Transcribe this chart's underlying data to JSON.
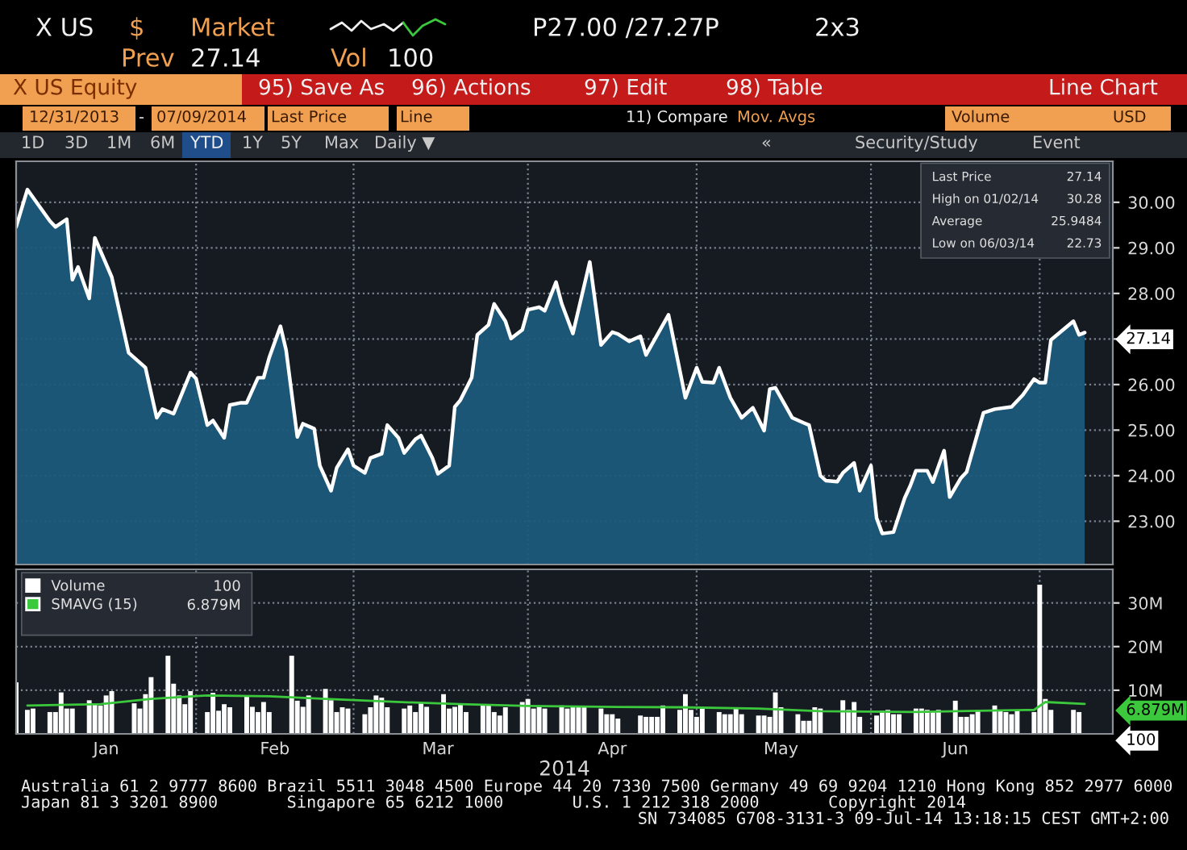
{
  "chart_data": [
    {
      "type": "other",
      "annotations": [
        "X US",
        "$",
        "Market",
        "P27.00 /27.27P",
        "2x3",
        "Prev",
        "27.14",
        "Vol",
        "100",
        "X US Equity",
        "95) Save As",
        "96) Actions",
        "97) Edit",
        "98) Table",
        "Line Chart",
        "12/31/2013",
        "-",
        "07/09/2014",
        "Last Price",
        "Line",
        "11) Compare",
        "Mov. Avgs",
        "Volume",
        "USD",
        "1D",
        "3D",
        "1M",
        "6M",
        "YTD",
        "1Y",
        "5Y",
        "Max",
        "Daily ▼",
        "«",
        "Security/Study",
        "Event"
      ]
    },
    {
      "type": "area",
      "xlim": [
        "2013-12-31",
        "2014-07-14"
      ],
      "ylim": [
        22.05,
        30.9
      ],
      "grid": true,
      "tick_labels": "y",
      "xticks": [
        {
          "value": "2014-02-01",
          "label": null
        },
        {
          "value": "2014-03-01",
          "label": null
        },
        {
          "value": "2014-04-01",
          "label": null
        },
        {
          "value": "2014-05-01",
          "label": null
        },
        {
          "value": "2014-06-01",
          "label": null
        },
        {
          "value": "2014-07-01",
          "label": null
        }
      ],
      "yticks": [
        {
          "value": 23,
          "label": "23.00"
        },
        {
          "value": 24,
          "label": "24.00"
        },
        {
          "value": 25,
          "label": "25.00"
        },
        {
          "value": 26,
          "label": "26.00"
        },
        {
          "value": 27,
          "label": null
        },
        {
          "value": 28,
          "label": "28.00"
        },
        {
          "value": 29,
          "label": "29.00"
        },
        {
          "value": 30,
          "label": "30.00"
        }
      ],
      "annotations": [
        "Last Price",
        "27.14",
        "High on 01/02/14",
        "30.28",
        "Average",
        "25.9484",
        "Low on 06/03/14",
        "22.73",
        {
          "text": "27.14",
          "x": "2014-07-09",
          "y": 27.14
        }
      ],
      "series": [
        {
          "color": "#ffffff",
          "x": [
            "2013-12-31",
            "2014-01-02",
            "2014-01-06",
            "2014-01-07",
            "2014-01-09",
            "2014-01-10",
            "2014-01-11",
            "2014-01-13",
            "2014-01-14",
            "2014-01-17",
            "2014-01-20",
            "2014-01-23",
            "2014-01-25",
            "2014-01-26",
            "2014-01-28",
            "2014-01-29",
            "2014-01-31",
            "2014-02-01",
            "2014-02-03",
            "2014-02-04",
            "2014-02-06",
            "2014-02-07",
            "2014-02-09",
            "2014-02-10",
            "2014-02-12",
            "2014-02-13",
            "2014-02-14",
            "2014-02-16",
            "2014-02-17",
            "2014-02-19",
            "2014-02-20",
            "2014-02-22",
            "2014-02-23",
            "2014-02-25",
            "2014-02-26",
            "2014-02-28",
            "2014-03-01",
            "2014-03-03",
            "2014-03-04",
            "2014-03-06",
            "2014-03-07",
            "2014-03-09",
            "2014-03-10",
            "2014-03-12",
            "2014-03-13",
            "2014-03-15",
            "2014-03-16",
            "2014-03-18",
            "2014-03-19",
            "2014-03-20",
            "2014-03-22",
            "2014-03-23",
            "2014-03-25",
            "2014-03-26",
            "2014-03-28",
            "2014-03-29",
            "2014-03-31",
            "2014-04-01",
            "2014-04-03",
            "2014-04-04",
            "2014-04-06",
            "2014-04-07",
            "2014-04-09",
            "2014-04-12",
            "2014-04-14",
            "2014-04-16",
            "2014-04-17",
            "2014-04-19",
            "2014-04-21",
            "2014-04-22",
            "2014-04-23",
            "2014-04-26",
            "2014-04-29",
            "2014-05-01",
            "2014-05-02",
            "2014-05-04",
            "2014-05-05",
            "2014-05-07",
            "2014-05-08",
            "2014-05-09",
            "2014-05-11",
            "2014-05-13",
            "2014-05-14",
            "2014-05-15",
            "2014-05-17",
            "2014-05-18",
            "2014-05-20",
            "2014-05-21",
            "2014-05-23",
            "2014-05-24",
            "2014-05-26",
            "2014-05-27",
            "2014-05-29",
            "2014-05-30",
            "2014-06-01",
            "2014-06-02",
            "2014-06-03",
            "2014-06-05",
            "2014-06-07",
            "2014-06-08",
            "2014-06-09",
            "2014-06-11",
            "2014-06-12",
            "2014-06-14",
            "2014-06-15",
            "2014-06-17",
            "2014-06-18",
            "2014-06-21",
            "2014-06-23",
            "2014-06-26",
            "2014-06-28",
            "2014-06-30",
            "2014-07-01",
            "2014-07-02",
            "2014-07-03",
            "2014-07-07",
            "2014-07-08",
            "2014-07-09"
          ],
          "values": [
            29.46,
            30.28,
            29.59,
            29.46,
            29.63,
            28.3,
            28.58,
            27.89,
            29.22,
            28.36,
            26.7,
            26.37,
            25.27,
            25.46,
            25.36,
            25.66,
            26.26,
            26.13,
            25.11,
            25.21,
            24.83,
            25.55,
            25.6,
            25.6,
            26.15,
            26.15,
            26.59,
            27.28,
            26.76,
            24.85,
            25.14,
            25.03,
            24.22,
            23.67,
            24.17,
            24.58,
            24.22,
            24.06,
            24.39,
            24.48,
            25.11,
            24.83,
            24.5,
            24.8,
            24.88,
            24.39,
            24.04,
            24.22,
            25.51,
            25.66,
            26.15,
            27.09,
            27.31,
            27.77,
            27.39,
            27.01,
            27.2,
            27.64,
            27.7,
            27.62,
            28.25,
            27.78,
            27.12,
            28.69,
            26.87,
            27.15,
            27.11,
            26.95,
            27.06,
            26.65,
            26.87,
            27.53,
            25.71,
            26.37,
            26.06,
            26.04,
            26.37,
            25.71,
            25.49,
            25.27,
            25.49,
            24.99,
            25.9,
            25.93,
            25.49,
            25.27,
            25.16,
            25.11,
            24.0,
            23.89,
            23.87,
            24.06,
            24.28,
            23.67,
            24.22,
            23.07,
            22.73,
            22.76,
            23.51,
            23.78,
            24.11,
            24.11,
            23.86,
            24.55,
            23.53,
            23.95,
            24.08,
            25.38,
            25.46,
            25.51,
            25.77,
            26.12,
            26.04,
            26.04,
            26.98,
            27.39,
            27.09,
            27.14
          ]
        }
      ]
    },
    {
      "type": "bar",
      "xlim": [
        "2013-12-31",
        "2014-07-14"
      ],
      "ylim": [
        0,
        37.7
      ],
      "grid": true,
      "legend": "top left",
      "xlabel": "2014",
      "xticks": [
        {
          "value": "2014-01-16",
          "label": "Jan"
        },
        {
          "value": "2014-02-01",
          "label": null
        },
        {
          "value": "2014-02-15",
          "label": "Feb"
        },
        {
          "value": "2014-03-01",
          "label": null
        },
        {
          "value": "2014-03-16",
          "label": "Mar"
        },
        {
          "value": "2014-04-01",
          "label": null
        },
        {
          "value": "2014-04-16",
          "label": "Apr"
        },
        {
          "value": "2014-05-01",
          "label": null
        },
        {
          "value": "2014-05-16",
          "label": "May"
        },
        {
          "value": "2014-06-01",
          "label": null
        },
        {
          "value": "2014-06-16",
          "label": "Jun"
        },
        {
          "value": "2014-07-01",
          "label": null
        }
      ],
      "yticks": [
        {
          "value": 10,
          "label": "10M"
        },
        {
          "value": 20,
          "label": "20M"
        },
        {
          "value": 30,
          "label": "30M"
        }
      ],
      "annotations": [
        "100",
        "6.879M",
        {
          "text": "6.879M",
          "x": "2014-07-09",
          "y": 6.879
        },
        {
          "text": "100",
          "x": "2014-07-09",
          "y": 0.0001
        }
      ],
      "series": [
        {
          "name": "Volume",
          "type": "bar",
          "color": "#ffffff",
          "x": [
            "2013-12-31",
            "2014-01-02",
            "2014-01-03",
            "2014-01-06",
            "2014-01-07",
            "2014-01-08",
            "2014-01-09",
            "2014-01-10",
            "2014-01-13",
            "2014-01-14",
            "2014-01-15",
            "2014-01-16",
            "2014-01-17",
            "2014-01-21",
            "2014-01-22",
            "2014-01-23",
            "2014-01-24",
            "2014-01-27",
            "2014-01-28",
            "2014-01-29",
            "2014-01-30",
            "2014-01-31",
            "2014-02-03",
            "2014-02-04",
            "2014-02-05",
            "2014-02-06",
            "2014-02-07",
            "2014-02-10",
            "2014-02-11",
            "2014-02-12",
            "2014-02-13",
            "2014-02-14",
            "2014-02-18",
            "2014-02-19",
            "2014-02-20",
            "2014-02-21",
            "2014-02-24",
            "2014-02-25",
            "2014-02-26",
            "2014-02-27",
            "2014-02-28",
            "2014-03-03",
            "2014-03-04",
            "2014-03-05",
            "2014-03-06",
            "2014-03-07",
            "2014-03-10",
            "2014-03-11",
            "2014-03-12",
            "2014-03-13",
            "2014-03-14",
            "2014-03-17",
            "2014-03-18",
            "2014-03-19",
            "2014-03-20",
            "2014-03-21",
            "2014-03-24",
            "2014-03-25",
            "2014-03-26",
            "2014-03-27",
            "2014-03-28",
            "2014-03-31",
            "2014-04-01",
            "2014-04-02",
            "2014-04-03",
            "2014-04-04",
            "2014-04-07",
            "2014-04-08",
            "2014-04-09",
            "2014-04-10",
            "2014-04-11",
            "2014-04-14",
            "2014-04-15",
            "2014-04-16",
            "2014-04-17",
            "2014-04-21",
            "2014-04-22",
            "2014-04-23",
            "2014-04-24",
            "2014-04-25",
            "2014-04-28",
            "2014-04-29",
            "2014-04-30",
            "2014-05-01",
            "2014-05-02",
            "2014-05-05",
            "2014-05-06",
            "2014-05-07",
            "2014-05-08",
            "2014-05-09",
            "2014-05-12",
            "2014-05-13",
            "2014-05-14",
            "2014-05-15",
            "2014-05-16",
            "2014-05-19",
            "2014-05-20",
            "2014-05-21",
            "2014-05-22",
            "2014-05-23",
            "2014-05-27",
            "2014-05-28",
            "2014-05-29",
            "2014-05-30",
            "2014-06-02",
            "2014-06-03",
            "2014-06-04",
            "2014-06-05",
            "2014-06-06",
            "2014-06-09",
            "2014-06-10",
            "2014-06-11",
            "2014-06-12",
            "2014-06-13",
            "2014-06-16",
            "2014-06-17",
            "2014-06-18",
            "2014-06-19",
            "2014-06-20",
            "2014-06-23",
            "2014-06-24",
            "2014-06-25",
            "2014-06-26",
            "2014-06-27",
            "2014-06-30",
            "2014-07-01",
            "2014-07-02",
            "2014-07-03",
            "2014-07-07",
            "2014-07-08",
            "2014-07-09"
          ],
          "values": [
            11.8,
            5.5,
            5.8,
            5.0,
            5.0,
            9.5,
            5.8,
            5.8,
            7.7,
            6.8,
            6.5,
            8.8,
            9.8,
            7.0,
            5.8,
            9.1,
            13.0,
            17.9,
            11.5,
            8.8,
            6.8,
            9.8,
            5.0,
            9.4,
            5.3,
            6.8,
            6.1,
            8.8,
            6.2,
            5.0,
            7.3,
            5.0,
            17.9,
            7.6,
            6.2,
            8.8,
            10.3,
            7.7,
            5.0,
            6.1,
            5.8,
            4.5,
            6.1,
            8.8,
            8.3,
            6.1,
            5.8,
            6.5,
            5.0,
            7.0,
            6.2,
            9.1,
            5.8,
            6.2,
            6.8,
            5.0,
            6.5,
            6.5,
            5.0,
            4.2,
            6.1,
            7.3,
            8.0,
            5.8,
            6.2,
            5.8,
            6.5,
            5.8,
            6.1,
            6.1,
            6.1,
            5.8,
            4.5,
            4.5,
            3.5,
            4.2,
            3.9,
            3.9,
            3.9,
            6.5,
            5.5,
            9.1,
            5.5,
            3.9,
            5.8,
            5.0,
            4.5,
            4.5,
            6.1,
            4.5,
            4.2,
            4.2,
            3.9,
            9.5,
            6.1,
            4.5,
            3.0,
            3.0,
            6.1,
            5.8,
            7.7,
            5.5,
            7.3,
            3.9,
            4.2,
            5.3,
            5.5,
            4.5,
            4.5,
            5.8,
            5.8,
            5.5,
            5.0,
            5.5,
            7.6,
            3.9,
            3.9,
            4.5,
            5.5,
            6.5,
            5.5,
            5.0,
            4.5,
            5.5,
            5.0,
            34.2,
            8.0,
            5.5,
            5.5,
            5.0,
            0.0001
          ]
        },
        {
          "name": "SMAVG (15)",
          "type": "line",
          "color": "#3cc83c",
          "x": [
            "2014-01-02",
            "2014-01-15",
            "2014-01-24",
            "2014-02-03",
            "2014-02-14",
            "2014-02-24",
            "2014-03-07",
            "2014-03-20",
            "2014-04-01",
            "2014-04-14",
            "2014-04-28",
            "2014-05-12",
            "2014-05-23",
            "2014-06-09",
            "2014-06-20",
            "2014-06-30",
            "2014-07-02",
            "2014-07-09"
          ],
          "values": [
            6.5,
            6.8,
            8.0,
            8.8,
            8.6,
            8.0,
            7.4,
            6.8,
            6.4,
            6.2,
            6.1,
            5.8,
            5.2,
            5.0,
            5.3,
            5.5,
            7.3,
            6.879
          ]
        }
      ]
    },
    {
      "type": "other",
      "annotations": [
        "Australia 61 2 9777 8600 Brazil 5511 3048 4500 Europe 44 20 7330 7500 Germany 49 69 9204 1210 Hong Kong 852 2977 6000",
        "Japan 81 3 3201 8900       Singapore 65 6212 1000       U.S. 1 212 318 2000       Copyright 2014",
        "SN 734085 G708-3131-3 09-Jul-14 13:18:15 CEST GMT+2:00"
      ]
    }
  ]
}
